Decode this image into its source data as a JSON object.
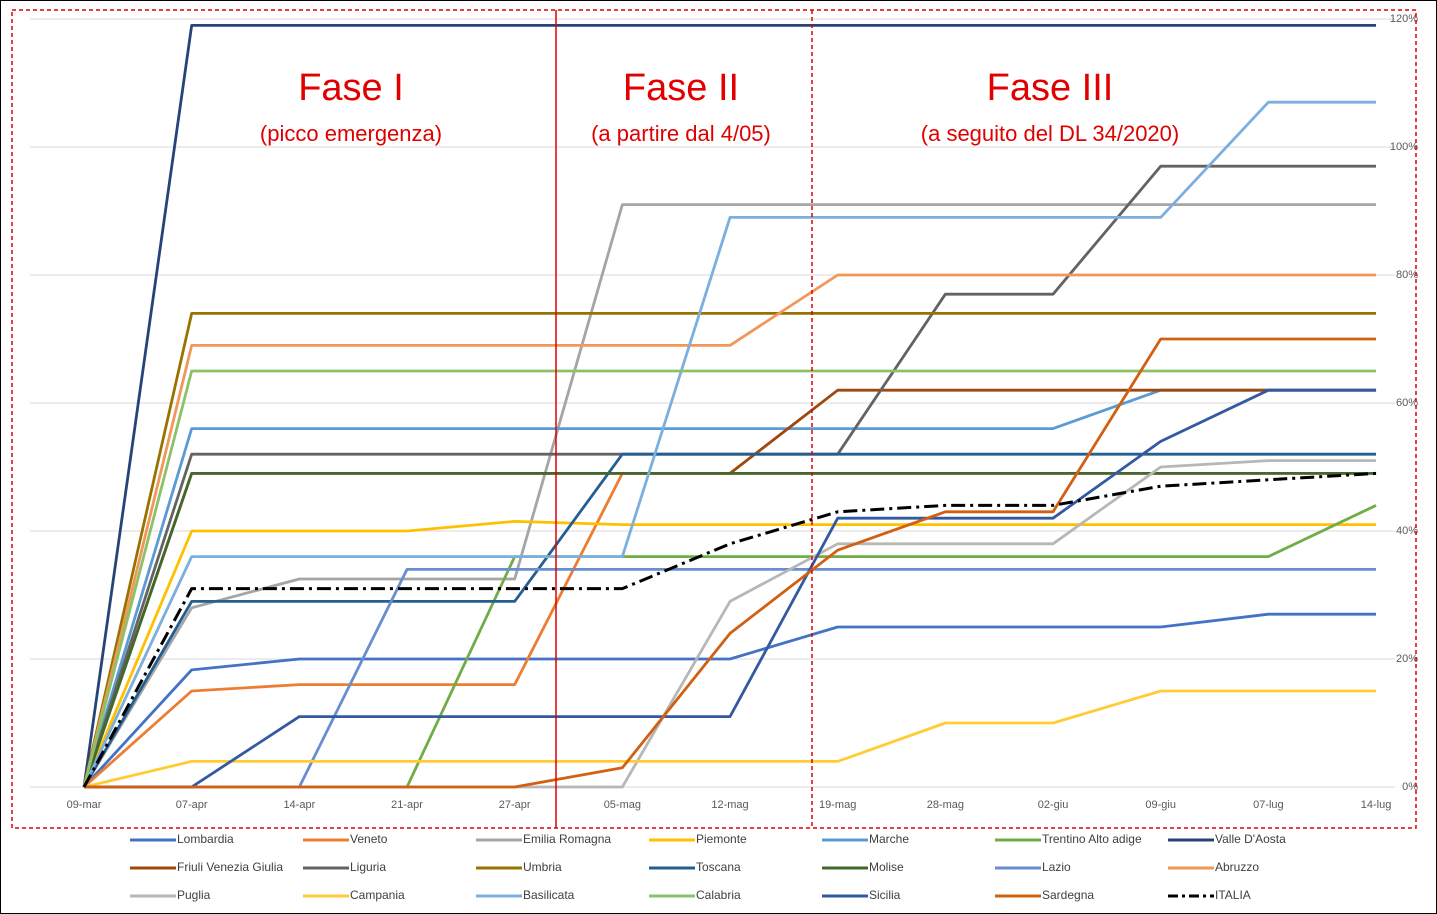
{
  "chart_data": {
    "type": "line",
    "categories": [
      "09-mar",
      "07-apr",
      "14-apr",
      "21-apr",
      "27-apr",
      "05-mag",
      "12-mag",
      "19-mag",
      "28-mag",
      "02-giu",
      "09-giu",
      "07-lug",
      "14-lug"
    ],
    "ylim": [
      0,
      120
    ],
    "yticks": [
      {
        "value": 0,
        "label": "0%"
      },
      {
        "value": 20,
        "label": "20%"
      },
      {
        "value": 40,
        "label": "40%"
      },
      {
        "value": 60,
        "label": "60%"
      },
      {
        "value": 80,
        "label": "80%"
      },
      {
        "value": 100,
        "label": "100%"
      },
      {
        "value": 120,
        "label": "120%"
      }
    ],
    "grid": true,
    "legend": "bottom",
    "annotations": [
      "Fase I",
      "(picco emergenza)",
      "Fase II",
      "(a partire dal 4/05)",
      "Fase III",
      "(a seguito del DL 34/2020)"
    ],
    "series": [
      {
        "name": "Lombardia",
        "color": "#4472c4",
        "values": [
          0,
          18.3,
          20,
          20,
          20,
          20,
          20,
          25,
          25,
          25,
          25,
          27,
          27
        ]
      },
      {
        "name": "Veneto",
        "color": "#ed7d31",
        "values": [
          0,
          15,
          16,
          16,
          16,
          49,
          49,
          49,
          49,
          49,
          49,
          49,
          49
        ]
      },
      {
        "name": "Emilia Romagna",
        "color": "#a5a5a5",
        "values": [
          0,
          28,
          32.5,
          32.5,
          32.5,
          91,
          91,
          91,
          91,
          91,
          91,
          91,
          91
        ]
      },
      {
        "name": "Piemonte",
        "color": "#ffc000",
        "values": [
          0,
          40,
          40,
          40,
          41.5,
          41,
          41,
          41,
          41,
          41,
          41,
          41,
          41
        ]
      },
      {
        "name": "Marche",
        "color": "#5b9bd5",
        "values": [
          0,
          56,
          56,
          56,
          56,
          56,
          56,
          56,
          56,
          56,
          62,
          62,
          62
        ]
      },
      {
        "name": "Trentino Alto adige",
        "color": "#70ad47",
        "values": [
          0,
          0,
          0,
          0,
          36,
          36,
          36,
          36,
          36,
          36,
          36,
          36,
          44
        ]
      },
      {
        "name": "Valle D'Aosta",
        "color": "#264478",
        "values": [
          0,
          119,
          119,
          119,
          119,
          119,
          119,
          119,
          119,
          119,
          119,
          119,
          119
        ]
      },
      {
        "name": "Friuli Venezia Giulia",
        "color": "#9e480e",
        "values": [
          0,
          49,
          49,
          49,
          49,
          49,
          49,
          62,
          62,
          62,
          62,
          62,
          62
        ]
      },
      {
        "name": "Liguria",
        "color": "#636363",
        "values": [
          0,
          52,
          52,
          52,
          52,
          52,
          52,
          52,
          77,
          77,
          97,
          97,
          97
        ]
      },
      {
        "name": "Umbria",
        "color": "#997300",
        "values": [
          0,
          74,
          74,
          74,
          74,
          74,
          74,
          74,
          74,
          74,
          74,
          74,
          74
        ]
      },
      {
        "name": "Toscana",
        "color": "#255e91",
        "values": [
          0,
          29,
          29,
          29,
          29,
          52,
          52,
          52,
          52,
          52,
          52,
          52,
          52
        ]
      },
      {
        "name": "Molise",
        "color": "#43682b",
        "values": [
          0,
          49,
          49,
          49,
          49,
          49,
          49,
          49,
          49,
          49,
          49,
          49,
          49
        ]
      },
      {
        "name": "Lazio",
        "color": "#698ed0",
        "values": [
          0,
          0,
          0,
          34,
          34,
          34,
          34,
          34,
          34,
          34,
          34,
          34,
          34
        ]
      },
      {
        "name": "Abruzzo",
        "color": "#f1975a",
        "values": [
          0,
          69,
          69,
          69,
          69,
          69,
          69,
          80,
          80,
          80,
          80,
          80,
          80
        ]
      },
      {
        "name": "Puglia",
        "color": "#b7b7b7",
        "values": [
          0,
          0,
          0,
          0,
          0,
          0,
          29,
          38,
          38,
          38,
          50,
          51,
          51
        ]
      },
      {
        "name": "Campania",
        "color": "#ffcd33",
        "values": [
          0,
          4,
          4,
          4,
          4,
          4,
          4,
          4,
          10,
          10,
          15,
          15,
          15
        ]
      },
      {
        "name": "Basilicata",
        "color": "#7cafdd",
        "values": [
          0,
          36,
          36,
          36,
          36,
          36,
          89,
          89,
          89,
          89,
          89,
          107,
          107
        ]
      },
      {
        "name": "Calabria",
        "color": "#8cc168",
        "values": [
          0,
          65,
          65,
          65,
          65,
          65,
          65,
          65,
          65,
          65,
          65,
          65,
          65
        ]
      },
      {
        "name": "Sicilia",
        "color": "#335aa1",
        "values": [
          0,
          0,
          11,
          11,
          11,
          11,
          11,
          42,
          42,
          42,
          54,
          62,
          62
        ]
      },
      {
        "name": "Sardegna",
        "color": "#d26012",
        "values": [
          0,
          0,
          0,
          0,
          0,
          3,
          24,
          37,
          43,
          43,
          70,
          70,
          70
        ]
      },
      {
        "name": "ITALIA",
        "color": "#000000",
        "line_style": "dash-dot",
        "values": [
          0,
          31,
          31,
          31,
          31,
          31,
          38,
          43,
          44,
          44,
          47,
          48,
          49
        ]
      }
    ]
  }
}
